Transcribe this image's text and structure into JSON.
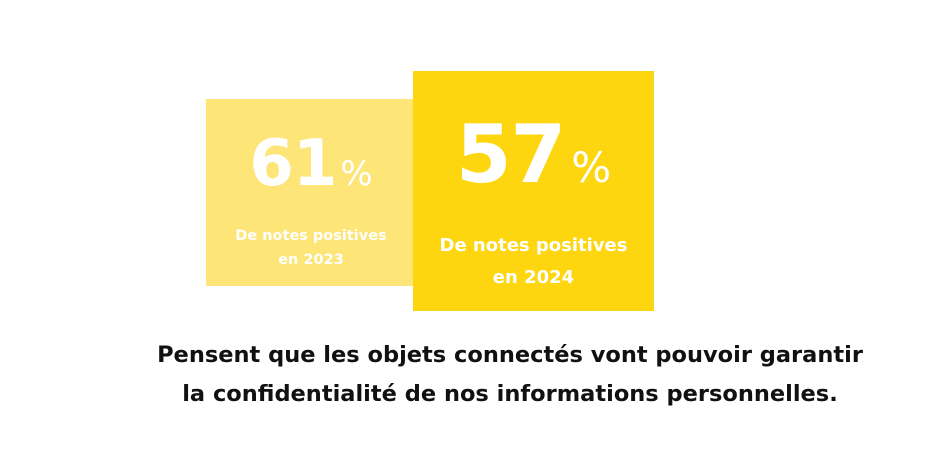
{
  "colors": {
    "card_2023_background": "#fde577",
    "card_2024_background": "#fdd60f",
    "card_text": "#ffffff",
    "description_text": "#111111"
  },
  "stat_2023": {
    "value": "61",
    "unit": "%",
    "caption_line1": "De notes positives",
    "caption_line2": "en 2023"
  },
  "stat_2024": {
    "value": "57",
    "unit": "%",
    "caption_line1": "De notes positives",
    "caption_line2": "en 2024"
  },
  "description": {
    "line1": "Pensent que les objets connectés vont pouvoir garantir",
    "line2": "la confidentialité de nos informations personnelles."
  }
}
